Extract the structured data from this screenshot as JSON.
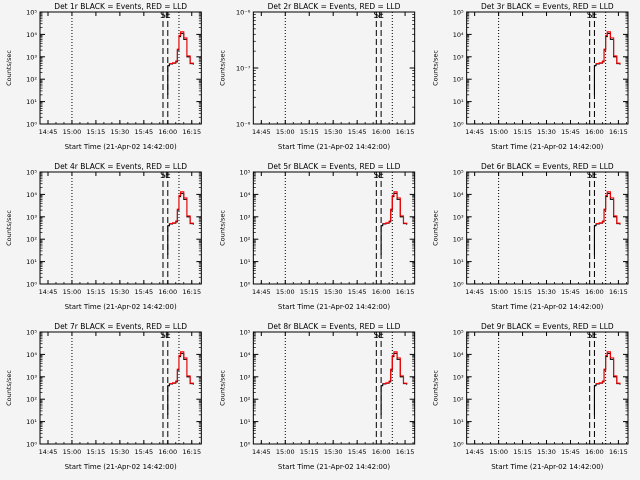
{
  "figure": {
    "background": "#f4f4f4",
    "axis_color": "#000000",
    "events_color": "#000000",
    "lld_color": "#ff0000"
  },
  "chart_data": [
    {
      "type": "line",
      "title": "Det 1r BLACK = Events, RED = LLD",
      "xlabel": "Start Time (21-Apr-02 14:42:00)",
      "ylabel": "Counts/sec",
      "x_ticks": [
        "14:45",
        "15:00",
        "15:15",
        "15:30",
        "15:45",
        "16:00",
        "16:15"
      ],
      "y_log": true,
      "ylim_exp": [
        0,
        5
      ],
      "y_tick_exps": [
        0,
        1,
        2,
        3,
        4,
        5
      ],
      "grid": false,
      "vlines_dotted": [
        "15:00",
        "16:07"
      ],
      "vlines_dashed": [
        "15:57",
        "16:00"
      ],
      "markers": [
        {
          "x": "15:57",
          "text": "S"
        },
        {
          "x": "16:00",
          "text": "E"
        }
      ],
      "series": [
        {
          "role": "events",
          "x": [
            "16:00",
            "16:00",
            "16:01",
            "16:03",
            "16:05",
            "16:06",
            "16:07",
            "16:08",
            "16:10",
            "16:12",
            "16:14",
            "16:16"
          ],
          "y": [
            20,
            400,
            480,
            520,
            600,
            2000,
            8000,
            11000,
            6000,
            1000,
            500,
            450
          ]
        },
        {
          "role": "lld",
          "x": [
            "16:01",
            "16:03",
            "16:05",
            "16:06",
            "16:07",
            "16:08",
            "16:10",
            "16:12",
            "16:14",
            "16:16"
          ],
          "y": [
            500,
            540,
            650,
            2200,
            9000,
            13000,
            7000,
            1100,
            520,
            480
          ]
        }
      ]
    },
    {
      "type": "line",
      "title": "Det 2r BLACK = Events, RED = LLD",
      "xlabel": "Start Time (21-Apr-02 14:42:00)",
      "ylabel": "Counts/sec",
      "x_ticks": [
        "14:45",
        "15:00",
        "15:15",
        "15:30",
        "15:45",
        "16:00",
        "16:15"
      ],
      "y_log": true,
      "ylim_exp": [
        -8,
        -6
      ],
      "y_tick_exps": [
        -8,
        -7,
        -6
      ],
      "grid": false,
      "vlines_dotted": [
        "15:00",
        "16:07"
      ],
      "vlines_dashed": [
        "15:57",
        "16:00"
      ],
      "markers": [
        {
          "x": "15:57",
          "text": "S"
        },
        {
          "x": "16:00",
          "text": "E"
        }
      ],
      "series": []
    },
    {
      "type": "line",
      "title": "Det 3r BLACK = Events, RED = LLD",
      "xlabel": "Start Time (21-Apr-02 14:42:00)",
      "ylabel": "Counts/sec",
      "x_ticks": [
        "14:45",
        "15:00",
        "15:15",
        "15:30",
        "15:45",
        "16:00",
        "16:15"
      ],
      "y_log": true,
      "ylim_exp": [
        0,
        5
      ],
      "y_tick_exps": [
        0,
        1,
        2,
        3,
        4,
        5
      ],
      "grid": false,
      "vlines_dotted": [
        "15:00",
        "16:07"
      ],
      "vlines_dashed": [
        "15:57",
        "16:00"
      ],
      "markers": [
        {
          "x": "15:57",
          "text": "S"
        },
        {
          "x": "16:00",
          "text": "E"
        }
      ],
      "series": [
        {
          "role": "events",
          "x": [
            "16:00",
            "16:00",
            "16:01",
            "16:03",
            "16:05",
            "16:06",
            "16:07",
            "16:08",
            "16:10",
            "16:12",
            "16:14",
            "16:16"
          ],
          "y": [
            20,
            400,
            480,
            520,
            600,
            2000,
            8000,
            11000,
            6000,
            1000,
            500,
            450
          ]
        },
        {
          "role": "lld",
          "x": [
            "16:01",
            "16:03",
            "16:05",
            "16:06",
            "16:07",
            "16:08",
            "16:10",
            "16:12",
            "16:14",
            "16:16"
          ],
          "y": [
            500,
            540,
            650,
            2200,
            9000,
            13000,
            7000,
            1100,
            520,
            480
          ]
        }
      ]
    },
    {
      "type": "line",
      "title": "Det 4r BLACK = Events, RED = LLD",
      "xlabel": "Start Time (21-Apr-02 14:42:00)",
      "ylabel": "Counts/sec",
      "x_ticks": [
        "14:45",
        "15:00",
        "15:15",
        "15:30",
        "15:45",
        "16:00",
        "16:15"
      ],
      "y_log": true,
      "ylim_exp": [
        0,
        5
      ],
      "y_tick_exps": [
        0,
        1,
        2,
        3,
        4,
        5
      ],
      "grid": false,
      "vlines_dotted": [
        "15:00",
        "16:07"
      ],
      "vlines_dashed": [
        "15:57",
        "16:00"
      ],
      "markers": [
        {
          "x": "15:57",
          "text": "S"
        },
        {
          "x": "16:00",
          "text": "E"
        }
      ],
      "series": [
        {
          "role": "events",
          "x": [
            "16:00",
            "16:00",
            "16:01",
            "16:03",
            "16:05",
            "16:06",
            "16:07",
            "16:08",
            "16:10",
            "16:12",
            "16:14",
            "16:16"
          ],
          "y": [
            20,
            400,
            480,
            520,
            600,
            2000,
            8000,
            11000,
            6000,
            1000,
            500,
            450
          ]
        },
        {
          "role": "lld",
          "x": [
            "16:01",
            "16:03",
            "16:05",
            "16:06",
            "16:07",
            "16:08",
            "16:10",
            "16:12",
            "16:14",
            "16:16"
          ],
          "y": [
            500,
            540,
            650,
            2200,
            9000,
            13000,
            7000,
            1100,
            520,
            480
          ]
        }
      ]
    },
    {
      "type": "line",
      "title": "Det 5r BLACK = Events, RED = LLD",
      "xlabel": "Start Time (21-Apr-02 14:42:00)",
      "ylabel": "Counts/sec",
      "x_ticks": [
        "14:45",
        "15:00",
        "15:15",
        "15:30",
        "15:45",
        "16:00",
        "16:15"
      ],
      "y_log": true,
      "ylim_exp": [
        0,
        5
      ],
      "y_tick_exps": [
        0,
        1,
        2,
        3,
        4,
        5
      ],
      "grid": false,
      "vlines_dotted": [
        "15:00",
        "16:07"
      ],
      "vlines_dashed": [
        "15:57",
        "16:00"
      ],
      "markers": [
        {
          "x": "15:57",
          "text": "S"
        },
        {
          "x": "16:00",
          "text": "E"
        }
      ],
      "series": [
        {
          "role": "events",
          "x": [
            "16:00",
            "16:00",
            "16:01",
            "16:03",
            "16:05",
            "16:06",
            "16:07",
            "16:08",
            "16:10",
            "16:12",
            "16:14",
            "16:16"
          ],
          "y": [
            20,
            400,
            480,
            520,
            600,
            2000,
            8000,
            11000,
            6000,
            1000,
            500,
            450
          ]
        },
        {
          "role": "lld",
          "x": [
            "16:01",
            "16:03",
            "16:05",
            "16:06",
            "16:07",
            "16:08",
            "16:10",
            "16:12",
            "16:14",
            "16:16"
          ],
          "y": [
            500,
            540,
            650,
            2200,
            9000,
            13000,
            7000,
            1100,
            520,
            480
          ]
        }
      ]
    },
    {
      "type": "line",
      "title": "Det 6r BLACK = Events, RED = LLD",
      "xlabel": "Start Time (21-Apr-02 14:42:00)",
      "ylabel": "Counts/sec",
      "x_ticks": [
        "14:45",
        "15:00",
        "15:15",
        "15:30",
        "15:45",
        "16:00",
        "16:15"
      ],
      "y_log": true,
      "ylim_exp": [
        0,
        5
      ],
      "y_tick_exps": [
        0,
        1,
        2,
        3,
        4,
        5
      ],
      "grid": false,
      "vlines_dotted": [
        "15:00",
        "16:07"
      ],
      "vlines_dashed": [
        "15:57",
        "16:00"
      ],
      "markers": [
        {
          "x": "15:57",
          "text": "S"
        },
        {
          "x": "16:00",
          "text": "E"
        }
      ],
      "series": [
        {
          "role": "events",
          "x": [
            "16:00",
            "16:00",
            "16:01",
            "16:03",
            "16:05",
            "16:06",
            "16:07",
            "16:08",
            "16:10",
            "16:12",
            "16:14",
            "16:16"
          ],
          "y": [
            20,
            400,
            480,
            520,
            600,
            2000,
            8000,
            11000,
            6000,
            1000,
            500,
            450
          ]
        },
        {
          "role": "lld",
          "x": [
            "16:01",
            "16:03",
            "16:05",
            "16:06",
            "16:07",
            "16:08",
            "16:10",
            "16:12",
            "16:14",
            "16:16"
          ],
          "y": [
            500,
            540,
            650,
            2200,
            9000,
            13000,
            7000,
            1100,
            520,
            480
          ]
        }
      ]
    },
    {
      "type": "line",
      "title": "Det 7r BLACK = Events, RED = LLD",
      "xlabel": "Start Time (21-Apr-02 14:42:00)",
      "ylabel": "Counts/sec",
      "x_ticks": [
        "14:45",
        "15:00",
        "15:15",
        "15:30",
        "15:45",
        "16:00",
        "16:15"
      ],
      "y_log": true,
      "ylim_exp": [
        0,
        5
      ],
      "y_tick_exps": [
        0,
        1,
        2,
        3,
        4,
        5
      ],
      "grid": false,
      "vlines_dotted": [
        "15:00",
        "16:07"
      ],
      "vlines_dashed": [
        "15:57",
        "16:00"
      ],
      "markers": [
        {
          "x": "15:57",
          "text": "S"
        },
        {
          "x": "16:00",
          "text": "E"
        }
      ],
      "series": [
        {
          "role": "events",
          "x": [
            "16:00",
            "16:00",
            "16:01",
            "16:03",
            "16:05",
            "16:06",
            "16:07",
            "16:08",
            "16:10",
            "16:12",
            "16:14",
            "16:16"
          ],
          "y": [
            20,
            400,
            480,
            520,
            600,
            2000,
            8000,
            11000,
            6000,
            1000,
            500,
            450
          ]
        },
        {
          "role": "lld",
          "x": [
            "16:01",
            "16:03",
            "16:05",
            "16:06",
            "16:07",
            "16:08",
            "16:10",
            "16:12",
            "16:14",
            "16:16"
          ],
          "y": [
            500,
            540,
            650,
            2200,
            9000,
            13000,
            7000,
            1100,
            520,
            480
          ]
        }
      ]
    },
    {
      "type": "line",
      "title": "Det 8r BLACK = Events, RED = LLD",
      "xlabel": "Start Time (21-Apr-02 14:42:00)",
      "ylabel": "Counts/sec",
      "x_ticks": [
        "14:45",
        "15:00",
        "15:15",
        "15:30",
        "15:45",
        "16:00",
        "16:15"
      ],
      "y_log": true,
      "ylim_exp": [
        0,
        5
      ],
      "y_tick_exps": [
        0,
        1,
        2,
        3,
        4,
        5
      ],
      "grid": false,
      "vlines_dotted": [
        "15:00",
        "16:07"
      ],
      "vlines_dashed": [
        "15:57",
        "16:00"
      ],
      "markers": [
        {
          "x": "15:57",
          "text": "S"
        },
        {
          "x": "16:00",
          "text": "E"
        }
      ],
      "series": [
        {
          "role": "events",
          "x": [
            "16:00",
            "16:00",
            "16:01",
            "16:03",
            "16:05",
            "16:06",
            "16:07",
            "16:08",
            "16:10",
            "16:12",
            "16:14",
            "16:16"
          ],
          "y": [
            20,
            400,
            480,
            520,
            600,
            2000,
            8000,
            11000,
            6000,
            1000,
            500,
            450
          ]
        },
        {
          "role": "lld",
          "x": [
            "16:01",
            "16:03",
            "16:05",
            "16:06",
            "16:07",
            "16:08",
            "16:10",
            "16:12",
            "16:14",
            "16:16"
          ],
          "y": [
            500,
            540,
            650,
            2200,
            9000,
            13000,
            7000,
            1100,
            520,
            480
          ]
        }
      ]
    },
    {
      "type": "line",
      "title": "Det 9r BLACK = Events, RED = LLD",
      "xlabel": "Start Time (21-Apr-02 14:42:00)",
      "ylabel": "Counts/sec",
      "x_ticks": [
        "14:45",
        "15:00",
        "15:15",
        "15:30",
        "15:45",
        "16:00",
        "16:15"
      ],
      "y_log": true,
      "ylim_exp": [
        0,
        5
      ],
      "y_tick_exps": [
        0,
        1,
        2,
        3,
        4,
        5
      ],
      "grid": false,
      "vlines_dotted": [
        "15:00",
        "16:07"
      ],
      "vlines_dashed": [
        "15:57",
        "16:00"
      ],
      "markers": [
        {
          "x": "15:57",
          "text": "S"
        },
        {
          "x": "16:00",
          "text": "E"
        }
      ],
      "series": [
        {
          "role": "events",
          "x": [
            "16:00",
            "16:00",
            "16:01",
            "16:03",
            "16:05",
            "16:06",
            "16:07",
            "16:08",
            "16:10",
            "16:12",
            "16:14",
            "16:16"
          ],
          "y": [
            20,
            400,
            480,
            520,
            600,
            2000,
            8000,
            11000,
            6000,
            1000,
            500,
            450
          ]
        },
        {
          "role": "lld",
          "x": [
            "16:01",
            "16:03",
            "16:05",
            "16:06",
            "16:07",
            "16:08",
            "16:10",
            "16:12",
            "16:14",
            "16:16"
          ],
          "y": [
            500,
            540,
            650,
            2200,
            9000,
            13000,
            7000,
            1100,
            520,
            480
          ]
        }
      ]
    }
  ]
}
